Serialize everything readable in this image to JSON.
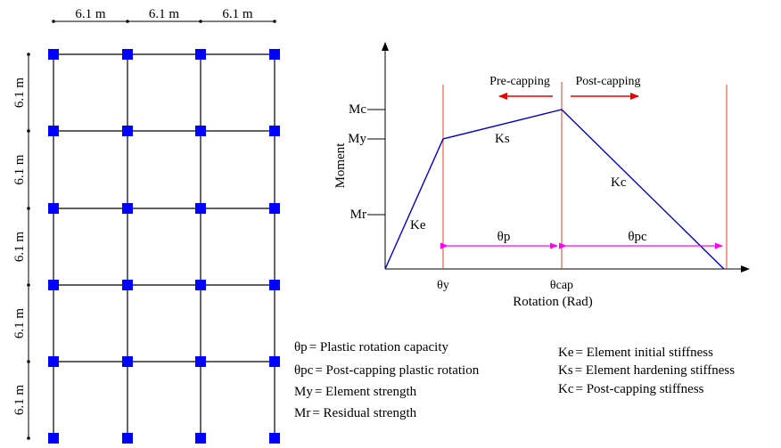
{
  "frame": {
    "bays": 3,
    "stories": 5,
    "bay_label": "6.1 m",
    "story_label": "6.1 m",
    "column_color": "#000000",
    "node_color": "#0000ff"
  },
  "backbone": {
    "y_axis_label": "Moment",
    "x_axis_label": "Rotation (Rad)",
    "moment_ticks": {
      "mc": "Mc",
      "my": "My",
      "mr": "Mr"
    },
    "rotation_ticks": {
      "theta_y": "θy",
      "theta_cap": "θcap"
    },
    "segment_labels": {
      "ke": "Ke",
      "ks": "Ks",
      "kc": "Kc"
    },
    "regions": {
      "pre": "Pre-capping",
      "post": "Post-capping"
    },
    "dims": {
      "theta_p": "θp",
      "theta_pc": "θpc"
    },
    "curve_color": "#0000cc",
    "guide_color": "#e04020",
    "arrow_color": "#ee0000",
    "dim_color": "#ff00ff"
  },
  "legend": [
    {
      "sym": "θp",
      "text": "= Plastic rotation capacity"
    },
    {
      "sym": "θpc",
      "text": "= Post-capping plastic rotation"
    },
    {
      "sym": "My",
      "text": "= Element strength"
    },
    {
      "sym": "Mr",
      "text": "= Residual strength"
    },
    {
      "sym": "Ke",
      "text": "= Element initial stiffness"
    },
    {
      "sym": "Ks",
      "text": "= Element hardening stiffness"
    },
    {
      "sym": "Kc",
      "text": "= Post-capping stiffness"
    }
  ]
}
